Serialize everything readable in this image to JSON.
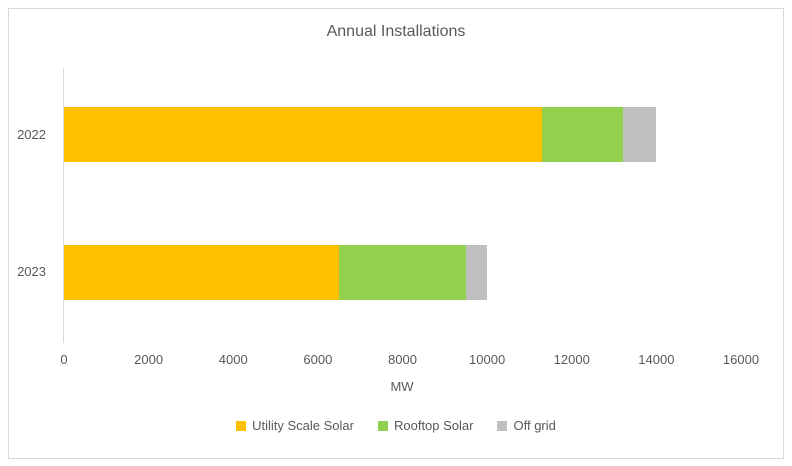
{
  "frame": {
    "border_color": "#D9D9D9",
    "background_color": "#FFFFFF"
  },
  "chart_data": {
    "type": "bar",
    "orientation": "horizontal",
    "stacked": true,
    "title": "Annual Installations",
    "categories": [
      "2022",
      "2023"
    ],
    "series": [
      {
        "name": "Utility Scale Solar",
        "color": "#FFC000",
        "values": [
          11300,
          6500
        ]
      },
      {
        "name": "Rooftop Solar",
        "color": "#92D050",
        "values": [
          1900,
          3000
        ]
      },
      {
        "name": "Off grid",
        "color": "#BFBFBF",
        "values": [
          800,
          500
        ]
      }
    ],
    "xlabel": "MW",
    "xlim": [
      0,
      16000
    ],
    "x_ticks": [
      0,
      2000,
      4000,
      6000,
      8000,
      10000,
      12000,
      14000,
      16000
    ],
    "grid": false,
    "legend_position": "bottom",
    "text_color": "#595959",
    "axis_line_color": "#D9D9D9"
  }
}
